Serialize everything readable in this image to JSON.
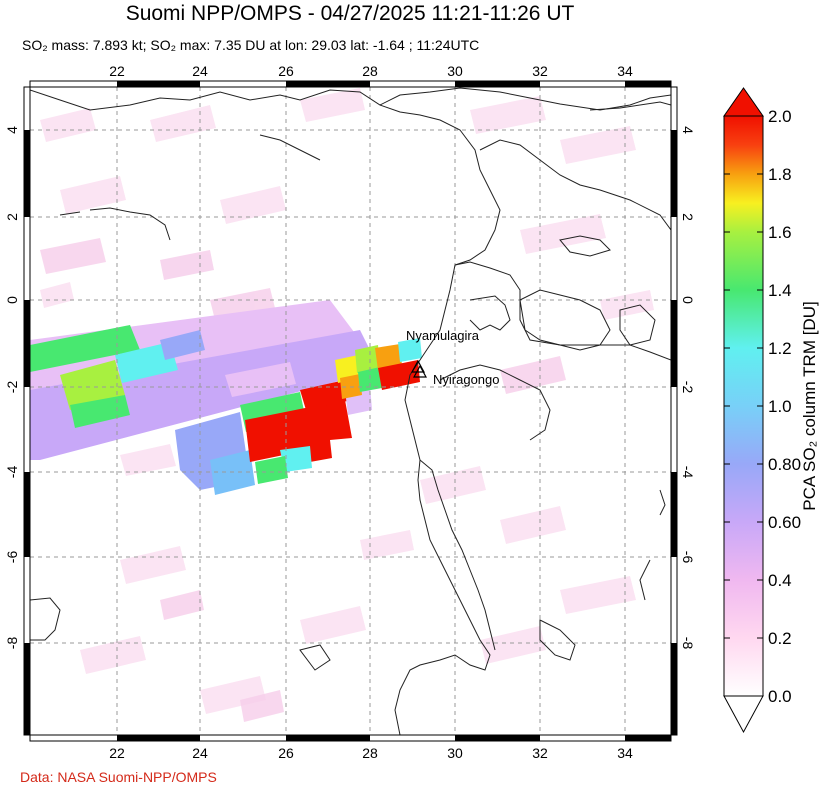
{
  "header": {
    "title": "Suomi NPP/OMPS - 04/27/2025 11:21-11:26 UT",
    "subtitle": "SO₂ mass: 7.893 kt; SO₂ max: 7.35 DU at lon: 29.03 lat: -1.64 ; 11:24UTC"
  },
  "footer": {
    "credit": "Data: NASA Suomi-NPP/OMPS"
  },
  "map": {
    "lon_ticks": [
      "22",
      "24",
      "26",
      "28",
      "30",
      "32",
      "34"
    ],
    "lat_ticks": [
      "4",
      "2",
      "0",
      "-2",
      "-4",
      "-6",
      "-8"
    ],
    "volcanoes": [
      {
        "name": "Nyamulagira"
      },
      {
        "name": "Nyiragongo"
      }
    ]
  },
  "colorbar": {
    "label": "PCA SO₂ column TRM [DU]",
    "ticks": [
      "2.0",
      "1.8",
      "1.6",
      "1.4",
      "1.2",
      "1.0",
      "0.80",
      "0.60",
      "0.4",
      "0.2",
      "0.0"
    ],
    "colors": [
      "#ffffff",
      "#ffd8f0",
      "#f0b8f0",
      "#c8a8f8",
      "#98a8f8",
      "#78d0f8",
      "#60f0f0",
      "#48e870",
      "#a8f040",
      "#f8f020",
      "#f8a010",
      "#f84010",
      "#f01000"
    ]
  }
}
